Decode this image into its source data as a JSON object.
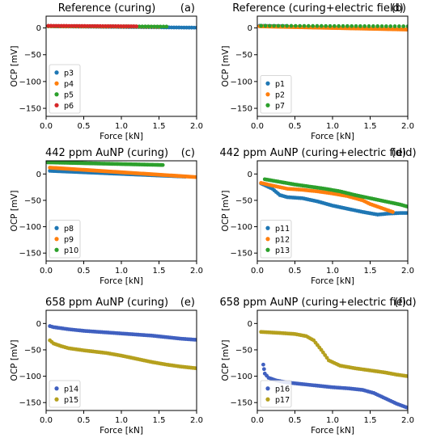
{
  "chart_data": [
    {
      "type": "scatter",
      "title": "Reference (curing)",
      "panel_tag": "(a)",
      "xlabel": "Force [kN]",
      "ylabel": "OCP [mV]",
      "xlim": [
        0,
        2.0
      ],
      "ylim": [
        -165,
        22
      ],
      "xticks": [
        "0.0",
        "0.5",
        "1.0",
        "1.5",
        "2.0"
      ],
      "xtick_values": [
        0,
        0.5,
        1.0,
        1.5,
        2.0
      ],
      "yticks": [
        "0",
        "−50",
        "−100",
        "−150"
      ],
      "ytick_values": [
        0,
        -50,
        -100,
        -150
      ],
      "legend": "lower-left",
      "series": [
        {
          "name": "p3",
          "color": "#1f77b4",
          "x_range": [
            0.03,
            2.0
          ],
          "y_start": 3,
          "y_end": 0.5,
          "points": 60
        },
        {
          "name": "p4",
          "color": "#ff7f0e",
          "x_range": [
            0.03,
            1.5
          ],
          "y_start": 3,
          "y_end": 2,
          "points": 40
        },
        {
          "name": "p5",
          "color": "#2ca02c",
          "x_range": [
            0.03,
            1.6
          ],
          "y_start": 3.5,
          "y_end": 2.5,
          "points": 40
        },
        {
          "name": "p6",
          "color": "#d62728",
          "x_range": [
            0.03,
            1.2
          ],
          "y_start": 4,
          "y_end": 3,
          "points": 35
        }
      ]
    },
    {
      "type": "scatter",
      "title": "Reference (curing+electric field)",
      "panel_tag": "(b)",
      "xlabel": "Force [kN]",
      "ylabel": "OCP [mV]",
      "xlim": [
        0,
        2.0
      ],
      "ylim": [
        -165,
        22
      ],
      "xticks": [
        "0.0",
        "0.5",
        "1.0",
        "1.5",
        "2.0"
      ],
      "xtick_values": [
        0,
        0.5,
        1.0,
        1.5,
        2.0
      ],
      "yticks": [
        "0",
        "−50",
        "−100",
        "−150"
      ],
      "ytick_values": [
        0,
        -50,
        -100,
        -150
      ],
      "legend": "lower-left",
      "series": [
        {
          "name": "p1",
          "color": "#1f77b4",
          "x_range": [
            0.03,
            0.4
          ],
          "y_start": 4,
          "y_end": 3,
          "points": 15
        },
        {
          "name": "p2",
          "color": "#ff7f0e",
          "x_range": [
            0.03,
            2.0
          ],
          "y_start": 3,
          "y_end": -3,
          "points": 120
        },
        {
          "name": "p7",
          "color": "#2ca02c",
          "x_range": [
            0.05,
            2.0
          ],
          "y_start": 4,
          "y_end": 3,
          "points": 35
        }
      ]
    },
    {
      "type": "scatter",
      "title": "442 ppm AuNP (curing)",
      "panel_tag": "(c)",
      "xlabel": "Force [kN]",
      "ylabel": "OCP [mV]",
      "xlim": [
        0,
        2.0
      ],
      "ylim": [
        -165,
        25
      ],
      "xticks": [
        "0.0",
        "0.5",
        "1.0",
        "1.5",
        "2.0"
      ],
      "xtick_values": [
        0,
        0.5,
        1.0,
        1.5,
        2.0
      ],
      "yticks": [
        "0",
        "−50",
        "−100",
        "−150"
      ],
      "ytick_values": [
        0,
        -50,
        -100,
        -150
      ],
      "legend": "lower-left",
      "series": [
        {
          "name": "p8",
          "color": "#1f77b4",
          "x_range": [
            0.05,
            1.85
          ],
          "y_start": 6,
          "y_end": -5,
          "points": 90
        },
        {
          "name": "p9",
          "color": "#ff7f0e",
          "x_range": [
            0.05,
            2.0
          ],
          "y_start": 12,
          "y_end": -6,
          "points": 100
        },
        {
          "name": "p10",
          "color": "#2ca02c",
          "x_range": [
            0.02,
            1.55
          ],
          "y_start": 22,
          "y_end": 17,
          "points": 70
        }
      ]
    },
    {
      "type": "scatter",
      "title": "442 ppm AuNP (curing+electric field)",
      "panel_tag": "(d)",
      "xlabel": "Force [kN]",
      "ylabel": "OCP [mV]",
      "xlim": [
        0,
        2.0
      ],
      "ylim": [
        -165,
        25
      ],
      "xticks": [
        "0.0",
        "0.5",
        "1.0",
        "1.5",
        "2.0"
      ],
      "xtick_values": [
        0,
        0.5,
        1.0,
        1.5,
        2.0
      ],
      "yticks": [
        "0",
        "−50",
        "−100",
        "−150"
      ],
      "ytick_values": [
        0,
        -50,
        -100,
        -150
      ],
      "legend": "lower-left",
      "series": [
        {
          "name": "p11",
          "color": "#1f77b4",
          "x": [
            0.05,
            0.2,
            0.3,
            0.4,
            0.6,
            0.8,
            1.0,
            1.2,
            1.4,
            1.6,
            1.75,
            1.9,
            2.0
          ],
          "y": [
            -18,
            -28,
            -40,
            -44,
            -46,
            -52,
            -60,
            -66,
            -72,
            -77,
            -75,
            -74,
            -74
          ]
        },
        {
          "name": "p12",
          "color": "#ff7f0e",
          "x": [
            0.05,
            0.2,
            0.4,
            0.6,
            0.8,
            1.0,
            1.2,
            1.4,
            1.5,
            1.6,
            1.7,
            1.8
          ],
          "y": [
            -17,
            -22,
            -28,
            -30,
            -33,
            -37,
            -42,
            -50,
            -57,
            -62,
            -67,
            -72
          ]
        },
        {
          "name": "p13",
          "color": "#2ca02c",
          "x": [
            0.1,
            0.3,
            0.5,
            0.7,
            0.9,
            1.1,
            1.3,
            1.5,
            1.7,
            1.9,
            2.0
          ],
          "y": [
            -10,
            -15,
            -20,
            -24,
            -28,
            -33,
            -40,
            -46,
            -52,
            -58,
            -62
          ]
        }
      ]
    },
    {
      "type": "scatter",
      "title": "658 ppm AuNP (curing)",
      "panel_tag": "(e)",
      "xlabel": "Force [kN]",
      "ylabel": "OCP [mV]",
      "xlim": [
        0,
        2.0
      ],
      "ylim": [
        -165,
        25
      ],
      "xticks": [
        "0.0",
        "0.5",
        "1.0",
        "1.5",
        "2.0"
      ],
      "xtick_values": [
        0,
        0.5,
        1.0,
        1.5,
        2.0
      ],
      "yticks": [
        "0",
        "−50",
        "−100",
        "−150"
      ],
      "ytick_values": [
        0,
        -50,
        -100,
        -150
      ],
      "legend": "lower-left",
      "series": [
        {
          "name": "p14",
          "color": "#4060c0",
          "x": [
            0.05,
            0.1,
            0.3,
            0.5,
            0.8,
            1.0,
            1.2,
            1.4,
            1.6,
            1.8,
            2.0
          ],
          "y": [
            -5,
            -7,
            -11,
            -14,
            -17,
            -19,
            -21,
            -23,
            -26,
            -29,
            -31
          ]
        },
        {
          "name": "p15",
          "color": "#b5a01e",
          "x": [
            0.05,
            0.1,
            0.2,
            0.3,
            0.5,
            0.8,
            1.0,
            1.2,
            1.4,
            1.6,
            1.8,
            2.0
          ],
          "y": [
            -32,
            -38,
            -43,
            -47,
            -51,
            -56,
            -61,
            -67,
            -73,
            -78,
            -82,
            -85
          ]
        }
      ]
    },
    {
      "type": "scatter",
      "title": "658 ppm AuNP (curing+electric field)",
      "panel_tag": "(f)",
      "xlabel": "Force [kN]",
      "ylabel": "OCP [mV]",
      "xlim": [
        0,
        2.0
      ],
      "ylim": [
        -165,
        25
      ],
      "xticks": [
        "0.0",
        "0.5",
        "1.0",
        "1.5",
        "2.0"
      ],
      "xtick_values": [
        0,
        0.5,
        1.0,
        1.5,
        2.0
      ],
      "yticks": [
        "0",
        "−50",
        "−100",
        "−150"
      ],
      "ytick_values": [
        0,
        -50,
        -100,
        -150
      ],
      "legend": "lower-left",
      "series": [
        {
          "name": "p16",
          "color": "#4060c0",
          "x": [
            0.08,
            0.1,
            0.15,
            0.25,
            0.4,
            0.6,
            0.8,
            1.0,
            1.2,
            1.4,
            1.55,
            1.7,
            1.85,
            2.0
          ],
          "y": [
            -78,
            -95,
            -103,
            -108,
            -112,
            -115,
            -118,
            -121,
            -123,
            -126,
            -132,
            -142,
            -152,
            -160
          ]
        },
        {
          "name": "p17",
          "color": "#b5a01e",
          "x": [
            0.05,
            0.3,
            0.5,
            0.65,
            0.75,
            0.85,
            0.95,
            1.1,
            1.3,
            1.5,
            1.7,
            1.85,
            2.0
          ],
          "y": [
            -16,
            -18,
            -20,
            -24,
            -32,
            -50,
            -70,
            -80,
            -85,
            -89,
            -93,
            -97,
            -100
          ]
        }
      ]
    }
  ]
}
